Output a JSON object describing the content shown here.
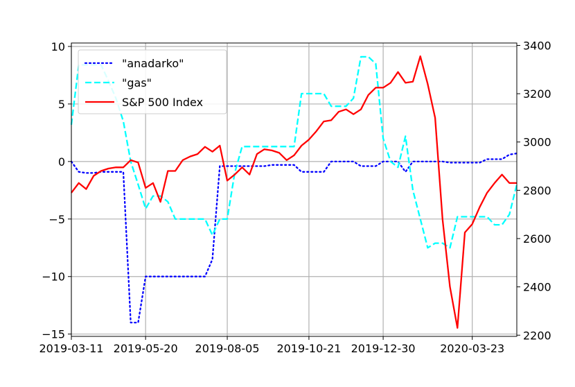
{
  "chart_data": {
    "type": "line",
    "title": "",
    "x_ticks": [
      "2019-03-11",
      "2019-05-20",
      "2019-08-05",
      "2019-10-21",
      "2019-12-30",
      "2020-03-23"
    ],
    "x_range": [
      "2019-03-11",
      "2020-05-04"
    ],
    "y_left": {
      "range": [
        -15.2,
        10.3
      ],
      "ticks": [
        -15,
        -10,
        -5,
        0,
        5,
        10
      ]
    },
    "y_right": {
      "range": [
        2195,
        3410
      ],
      "ticks": [
        2200,
        2400,
        2600,
        2800,
        3000,
        3200,
        3400
      ]
    },
    "grid": true,
    "legend_position": "upper left",
    "series": [
      {
        "name": "\"anadarko\"",
        "axis": "left",
        "color": "#0000ff",
        "style": "dotted",
        "points": [
          [
            "2019-03-11",
            0.0
          ],
          [
            "2019-03-18",
            -0.9
          ],
          [
            "2019-03-25",
            -1.0
          ],
          [
            "2019-04-01",
            -1.0
          ],
          [
            "2019-04-08",
            -0.9
          ],
          [
            "2019-04-15",
            -0.9
          ],
          [
            "2019-04-22",
            -0.9
          ],
          [
            "2019-04-29",
            -0.9
          ],
          [
            "2019-05-06",
            -14.0
          ],
          [
            "2019-05-13",
            -14.0
          ],
          [
            "2019-05-20",
            -10.0
          ],
          [
            "2019-05-27",
            -10.0
          ],
          [
            "2019-06-03",
            -10.0
          ],
          [
            "2019-06-10",
            -10.0
          ],
          [
            "2019-06-17",
            -10.0
          ],
          [
            "2019-06-24",
            -10.0
          ],
          [
            "2019-07-01",
            -10.0
          ],
          [
            "2019-07-08",
            -10.0
          ],
          [
            "2019-07-15",
            -10.0
          ],
          [
            "2019-07-22",
            -8.5
          ],
          [
            "2019-07-29",
            -0.4
          ],
          [
            "2019-08-05",
            -0.4
          ],
          [
            "2019-08-12",
            -0.4
          ],
          [
            "2019-08-19",
            -0.4
          ],
          [
            "2019-08-26",
            -0.4
          ],
          [
            "2019-09-02",
            -0.4
          ],
          [
            "2019-09-09",
            -0.4
          ],
          [
            "2019-09-16",
            -0.3
          ],
          [
            "2019-09-23",
            -0.3
          ],
          [
            "2019-09-30",
            -0.3
          ],
          [
            "2019-10-07",
            -0.3
          ],
          [
            "2019-10-14",
            -0.9
          ],
          [
            "2019-10-21",
            -0.9
          ],
          [
            "2019-10-28",
            -0.9
          ],
          [
            "2019-11-04",
            -0.9
          ],
          [
            "2019-11-11",
            0.0
          ],
          [
            "2019-11-18",
            0.0
          ],
          [
            "2019-11-25",
            0.0
          ],
          [
            "2019-12-02",
            0.0
          ],
          [
            "2019-12-09",
            -0.4
          ],
          [
            "2019-12-16",
            -0.4
          ],
          [
            "2019-12-23",
            -0.4
          ],
          [
            "2019-12-30",
            0.0
          ],
          [
            "2020-01-06",
            0.0
          ],
          [
            "2020-01-13",
            0.0
          ],
          [
            "2020-01-20",
            -0.9
          ],
          [
            "2020-01-27",
            0.0
          ],
          [
            "2020-02-03",
            0.0
          ],
          [
            "2020-02-10",
            0.0
          ],
          [
            "2020-02-17",
            0.0
          ],
          [
            "2020-02-24",
            0.0
          ],
          [
            "2020-03-02",
            -0.1
          ],
          [
            "2020-03-09",
            -0.1
          ],
          [
            "2020-03-16",
            -0.1
          ],
          [
            "2020-03-23",
            -0.1
          ],
          [
            "2020-03-30",
            -0.1
          ],
          [
            "2020-04-06",
            0.2
          ],
          [
            "2020-04-13",
            0.2
          ],
          [
            "2020-04-20",
            0.2
          ],
          [
            "2020-04-27",
            0.6
          ],
          [
            "2020-05-04",
            0.7
          ]
        ]
      },
      {
        "name": "\"gas\"",
        "axis": "left",
        "color": "#00ffff",
        "style": "dashed",
        "points": [
          [
            "2019-03-11",
            3.2
          ],
          [
            "2019-03-18",
            8.4
          ],
          [
            "2019-03-25",
            8.4
          ],
          [
            "2019-04-01",
            8.4
          ],
          [
            "2019-04-08",
            8.4
          ],
          [
            "2019-04-15",
            7.0
          ],
          [
            "2019-04-22",
            5.5
          ],
          [
            "2019-04-29",
            3.5
          ],
          [
            "2019-05-06",
            0.0
          ],
          [
            "2019-05-13",
            -2.0
          ],
          [
            "2019-05-20",
            -4.1
          ],
          [
            "2019-05-27",
            -3.0
          ],
          [
            "2019-06-03",
            -3.0
          ],
          [
            "2019-06-10",
            -3.5
          ],
          [
            "2019-06-17",
            -5.0
          ],
          [
            "2019-06-24",
            -5.0
          ],
          [
            "2019-07-01",
            -5.0
          ],
          [
            "2019-07-08",
            -5.0
          ],
          [
            "2019-07-15",
            -5.0
          ],
          [
            "2019-07-22",
            -6.4
          ],
          [
            "2019-07-29",
            -5.0
          ],
          [
            "2019-08-05",
            -5.0
          ],
          [
            "2019-08-12",
            -1.0
          ],
          [
            "2019-08-19",
            1.3
          ],
          [
            "2019-08-26",
            1.3
          ],
          [
            "2019-09-02",
            1.3
          ],
          [
            "2019-09-09",
            1.3
          ],
          [
            "2019-09-16",
            1.3
          ],
          [
            "2019-09-23",
            1.3
          ],
          [
            "2019-09-30",
            1.3
          ],
          [
            "2019-10-07",
            1.3
          ],
          [
            "2019-10-14",
            5.9
          ],
          [
            "2019-10-21",
            5.9
          ],
          [
            "2019-10-28",
            5.9
          ],
          [
            "2019-11-04",
            5.9
          ],
          [
            "2019-11-11",
            4.8
          ],
          [
            "2019-11-18",
            4.8
          ],
          [
            "2019-11-25",
            4.8
          ],
          [
            "2019-12-02",
            5.5
          ],
          [
            "2019-12-09",
            9.1
          ],
          [
            "2019-12-16",
            9.1
          ],
          [
            "2019-12-23",
            8.5
          ],
          [
            "2019-12-30",
            2.0
          ],
          [
            "2020-01-06",
            0.0
          ],
          [
            "2020-01-13",
            -0.5
          ],
          [
            "2020-01-20",
            2.2
          ],
          [
            "2020-01-27",
            -2.5
          ],
          [
            "2020-02-03",
            -5.0
          ],
          [
            "2020-02-10",
            -7.5
          ],
          [
            "2020-02-17",
            -7.1
          ],
          [
            "2020-02-24",
            -7.1
          ],
          [
            "2020-03-02",
            -7.5
          ],
          [
            "2020-03-09",
            -4.8
          ],
          [
            "2020-03-16",
            -4.8
          ],
          [
            "2020-03-23",
            -4.8
          ],
          [
            "2020-03-30",
            -4.8
          ],
          [
            "2020-04-06",
            -4.8
          ],
          [
            "2020-04-13",
            -5.5
          ],
          [
            "2020-04-20",
            -5.5
          ],
          [
            "2020-04-27",
            -4.6
          ],
          [
            "2020-05-04",
            -2.0
          ]
        ]
      },
      {
        "name": "S&P 500 Index",
        "axis": "right",
        "color": "#ff0000",
        "style": "solid",
        "points": [
          [
            "2019-03-11",
            2790
          ],
          [
            "2019-03-18",
            2830
          ],
          [
            "2019-03-25",
            2805
          ],
          [
            "2019-04-01",
            2860
          ],
          [
            "2019-04-08",
            2880
          ],
          [
            "2019-04-15",
            2890
          ],
          [
            "2019-04-22",
            2895
          ],
          [
            "2019-04-29",
            2895
          ],
          [
            "2019-05-06",
            2925
          ],
          [
            "2019-05-13",
            2915
          ],
          [
            "2019-05-20",
            2810
          ],
          [
            "2019-05-27",
            2830
          ],
          [
            "2019-06-03",
            2752
          ],
          [
            "2019-06-10",
            2880
          ],
          [
            "2019-06-17",
            2880
          ],
          [
            "2019-06-24",
            2925
          ],
          [
            "2019-07-01",
            2940
          ],
          [
            "2019-07-08",
            2950
          ],
          [
            "2019-07-15",
            2980
          ],
          [
            "2019-07-22",
            2960
          ],
          [
            "2019-07-29",
            2985
          ],
          [
            "2019-08-05",
            2840
          ],
          [
            "2019-08-12",
            2865
          ],
          [
            "2019-08-19",
            2895
          ],
          [
            "2019-08-26",
            2865
          ],
          [
            "2019-09-02",
            2950
          ],
          [
            "2019-09-09",
            2970
          ],
          [
            "2019-09-16",
            2965
          ],
          [
            "2019-09-23",
            2955
          ],
          [
            "2019-09-30",
            2925
          ],
          [
            "2019-10-07",
            2945
          ],
          [
            "2019-10-14",
            2985
          ],
          [
            "2019-10-21",
            3010
          ],
          [
            "2019-10-28",
            3045
          ],
          [
            "2019-11-04",
            3085
          ],
          [
            "2019-11-11",
            3090
          ],
          [
            "2019-11-18",
            3125
          ],
          [
            "2019-11-25",
            3135
          ],
          [
            "2019-12-02",
            3115
          ],
          [
            "2019-12-09",
            3135
          ],
          [
            "2019-12-16",
            3195
          ],
          [
            "2019-12-23",
            3225
          ],
          [
            "2019-12-30",
            3225
          ],
          [
            "2020-01-06",
            3245
          ],
          [
            "2020-01-13",
            3290
          ],
          [
            "2020-01-20",
            3245
          ],
          [
            "2020-01-27",
            3250
          ],
          [
            "2020-02-03",
            3355
          ],
          [
            "2020-02-10",
            3240
          ],
          [
            "2020-02-17",
            3100
          ],
          [
            "2020-02-24",
            2680
          ],
          [
            "2020-03-02",
            2400
          ],
          [
            "2020-03-09",
            2230
          ],
          [
            "2020-03-16",
            2625
          ],
          [
            "2020-03-23",
            2660
          ],
          [
            "2020-03-30",
            2730
          ],
          [
            "2020-04-06",
            2790
          ],
          [
            "2020-04-13",
            2830
          ],
          [
            "2020-04-20",
            2865
          ],
          [
            "2020-04-27",
            2830
          ],
          [
            "2020-05-04",
            2830
          ]
        ]
      }
    ]
  }
}
